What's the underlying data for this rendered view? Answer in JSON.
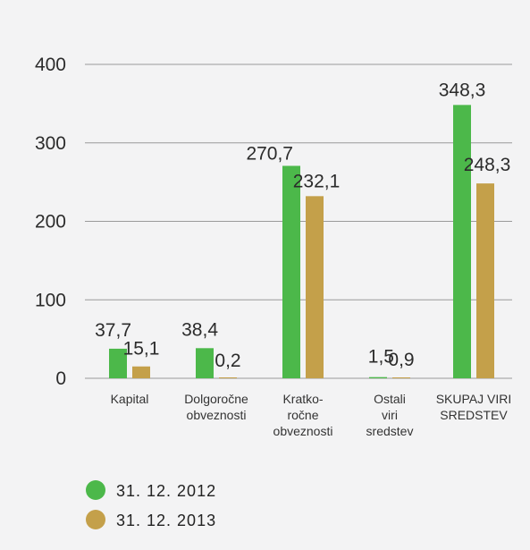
{
  "colors": {
    "background": "#f3f3f4",
    "grid": "#9a9a9a",
    "series_2012": "#4cb84a",
    "series_2013": "#c4a04a"
  },
  "chart_data": {
    "type": "bar",
    "categories": [
      [
        "Kapital"
      ],
      [
        "Dolgoročne",
        "obveznosti"
      ],
      [
        "Kratko-",
        "ročne",
        "obveznosti"
      ],
      [
        "Ostali",
        "viri",
        "sredstev"
      ],
      [
        "SKUPAJ VIRI",
        "SREDSTEV"
      ]
    ],
    "series": [
      {
        "name": "31. 12. 2012",
        "values": [
          37.7,
          38.4,
          270.7,
          1.5,
          348.3
        ],
        "labels": [
          "37,7",
          "38,4",
          "270,7",
          "1,5",
          "348,3"
        ],
        "color": "#4cb84a"
      },
      {
        "name": "31. 12. 2013",
        "values": [
          15.1,
          0.2,
          232.1,
          0.9,
          248.3
        ],
        "labels": [
          "15,1",
          "0,2",
          "232,1",
          "0,9",
          "248,3"
        ],
        "color": "#c4a04a"
      }
    ],
    "ylim": [
      0,
      400
    ],
    "yticks": [
      0,
      100,
      200,
      300,
      400
    ],
    "grid": true,
    "legend_position": "bottom-left"
  }
}
